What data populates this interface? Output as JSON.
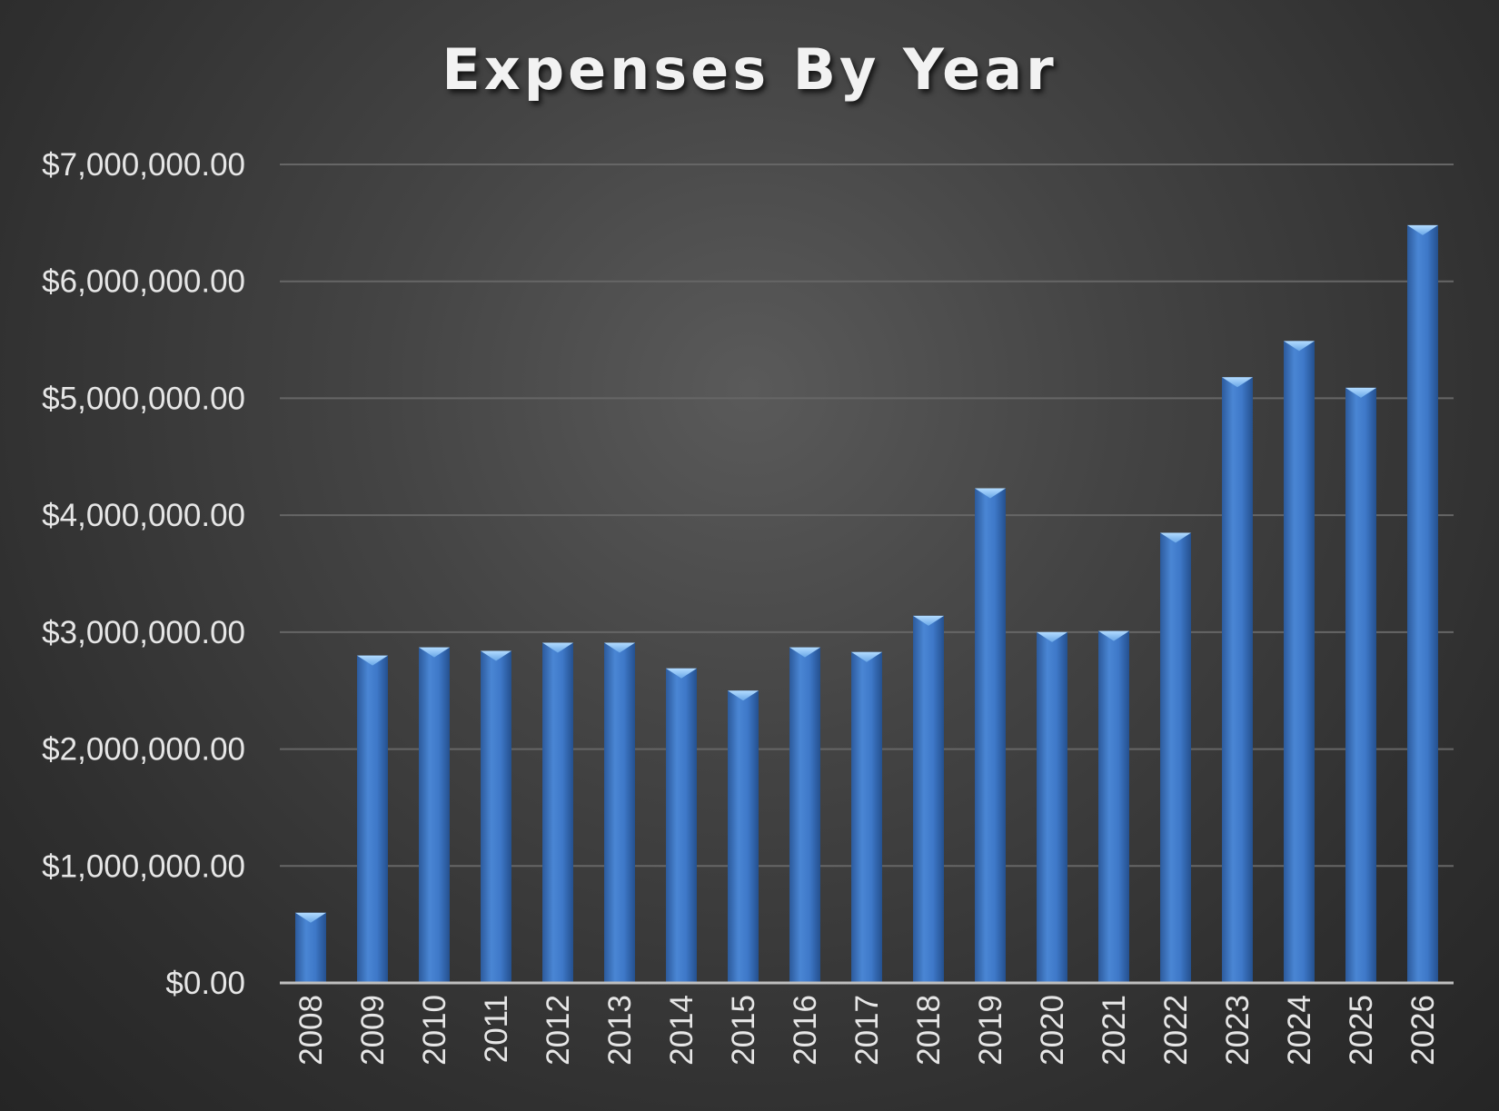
{
  "chart_data": {
    "type": "bar",
    "title": "Expenses By Year",
    "xlabel": "",
    "ylabel": "",
    "categories": [
      "2008",
      "2009",
      "2010",
      "2011",
      "2012",
      "2013",
      "2014",
      "2015",
      "2016",
      "2017",
      "2018",
      "2019",
      "2020",
      "2021",
      "2022",
      "2023",
      "2024",
      "2025",
      "2026"
    ],
    "values": [
      600000,
      2800000,
      2870000,
      2840000,
      2910000,
      2910000,
      2690000,
      2500000,
      2870000,
      2830000,
      3140000,
      4230000,
      3000000,
      3010000,
      3850000,
      5180000,
      5490000,
      5090000,
      6480000
    ],
    "ylim": [
      0,
      7000000
    ],
    "yticks": [
      0,
      1000000,
      2000000,
      3000000,
      4000000,
      5000000,
      6000000,
      7000000
    ],
    "ytick_labels": [
      "$0.00",
      "$1,000,000.00",
      "$2,000,000.00",
      "$3,000,000.00",
      "$4,000,000.00",
      "$5,000,000.00",
      "$6,000,000.00",
      "$7,000,000.00"
    ],
    "grid": true,
    "legend": "none",
    "colors": {
      "bar": "#3c74c4",
      "bar_top": "#8fc4f2",
      "gridline": "#666666",
      "axis": "#bfbfbf",
      "text": "#e6e6e6"
    }
  }
}
